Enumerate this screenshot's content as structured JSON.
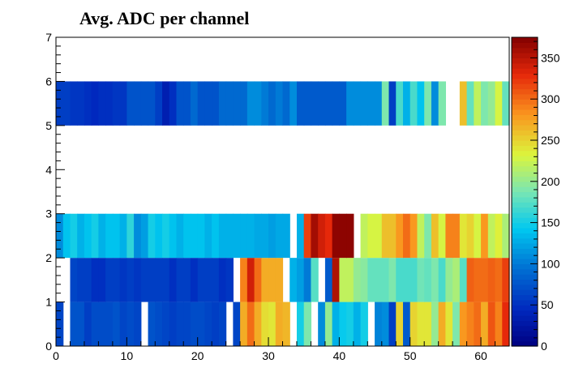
{
  "chart_data": {
    "type": "heatmap",
    "title": "Avg. ADC per channel",
    "xlabel": "",
    "ylabel": "",
    "xlim": [
      0,
      64
    ],
    "ylim": [
      0,
      7
    ],
    "x_ticks": [
      0,
      10,
      20,
      30,
      40,
      50,
      60
    ],
    "y_ticks": [
      0,
      1,
      2,
      3,
      4,
      5,
      6,
      7
    ],
    "colorbar": {
      "range": [
        0,
        375
      ],
      "ticks": [
        0,
        50,
        100,
        150,
        200,
        250,
        300,
        350
      ]
    },
    "grid": false,
    "rows": [
      {
        "y": 0,
        "values": [
          65,
          null,
          75,
          75,
          60,
          70,
          70,
          70,
          75,
          65,
          70,
          65,
          null,
          75,
          70,
          65,
          60,
          65,
          65,
          70,
          70,
          65,
          60,
          65,
          null,
          65,
          270,
          300,
          270,
          245,
          240,
          270,
          265,
          null,
          150,
          190,
          null,
          110,
          200,
          130,
          145,
          150,
          130,
          150,
          null,
          105,
          110,
          60,
          250,
          80,
          250,
          240,
          240,
          200,
          270,
          240,
          190,
          280,
          290,
          300,
          270,
          310,
          290,
          330
        ]
      },
      {
        "y": 1,
        "values": [
          null,
          null,
          65,
          60,
          60,
          50,
          50,
          60,
          60,
          55,
          60,
          55,
          60,
          60,
          60,
          60,
          50,
          60,
          60,
          50,
          60,
          60,
          60,
          50,
          55,
          null,
          290,
          340,
          300,
          270,
          270,
          270,
          null,
          130,
          120,
          100,
          175,
          null,
          80,
          355,
          220,
          220,
          200,
          195,
          180,
          180,
          180,
          190,
          170,
          170,
          170,
          185,
          180,
          190,
          170,
          200,
          210,
          175,
          305,
          300,
          300,
          305,
          300,
          320
        ]
      },
      {
        "y": 2,
        "values": [
          110,
          140,
          150,
          130,
          140,
          150,
          130,
          140,
          140,
          130,
          160,
          110,
          120,
          150,
          140,
          150,
          140,
          130,
          140,
          140,
          140,
          130,
          140,
          130,
          130,
          130,
          130,
          130,
          125,
          125,
          120,
          125,
          125,
          null,
          130,
          320,
          360,
          340,
          330,
          370,
          370,
          370,
          null,
          220,
          230,
          230,
          260,
          260,
          280,
          300,
          280,
          220,
          190,
          260,
          230,
          290,
          290,
          240,
          250,
          230,
          280,
          220,
          235,
          210
        ]
      },
      {
        "y": 5,
        "values": [
          60,
          60,
          55,
          55,
          50,
          45,
          50,
          50,
          55,
          55,
          75,
          75,
          75,
          75,
          60,
          35,
          50,
          75,
          75,
          90,
          75,
          75,
          75,
          90,
          90,
          90,
          90,
          110,
          110,
          100,
          90,
          100,
          90,
          110,
          80,
          80,
          80,
          80,
          80,
          80,
          80,
          110,
          110,
          110,
          110,
          110,
          190,
          60,
          170,
          130,
          170,
          140,
          190,
          110,
          190,
          null,
          null,
          260,
          180,
          220,
          190,
          200,
          230,
          180
        ]
      }
    ]
  }
}
